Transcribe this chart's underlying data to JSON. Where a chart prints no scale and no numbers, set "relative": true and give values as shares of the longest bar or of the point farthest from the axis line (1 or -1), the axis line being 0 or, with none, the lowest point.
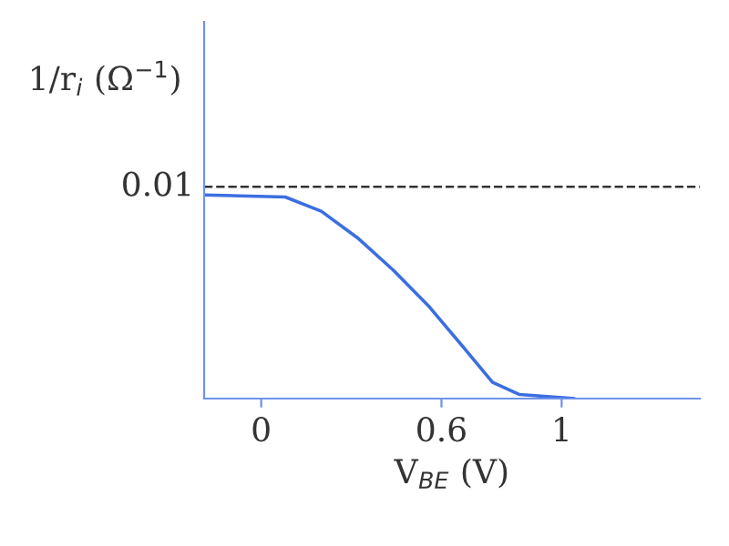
{
  "chart_data": {
    "type": "line",
    "relative": true,
    "xlabel": "V$_{BE}$ (V)",
    "ylabel": "1/r$_{i}$ (Ω$^{−1}$)",
    "x": [
      -0.19,
      0.08,
      0.2,
      0.32,
      0.44,
      0.56,
      0.68,
      0.77,
      0.86,
      1.04
    ],
    "series": [
      {
        "color": "#3b6fe0",
        "values": [
          1,
          0.99,
          0.92,
          0.79,
          0.63,
          0.45,
          0.24,
          0.08,
          0.02,
          0
        ]
      }
    ],
    "xlim": [
      -0.19,
      1.46
    ],
    "xticks": [
      0,
      0.6,
      1
    ],
    "ref_lines": [
      {
        "axis": "y",
        "value": 1.04,
        "line_style": "dashed",
        "color": "#333333"
      }
    ],
    "annotations": [
      "0.01"
    ],
    "grid": false,
    "legend": false
  }
}
